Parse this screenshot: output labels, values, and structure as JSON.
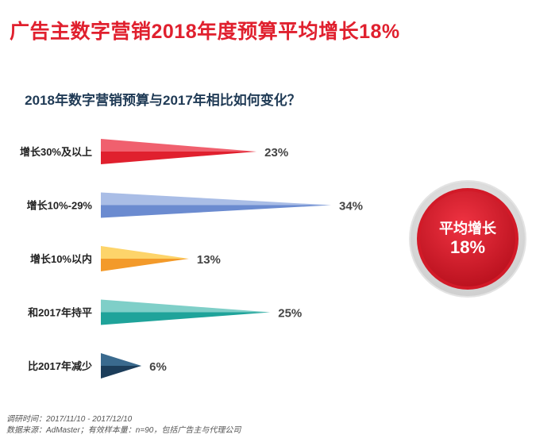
{
  "page_title": "广告主数字营销2018年度预算平均增长18%",
  "badge": {
    "label": "平均增长",
    "value": "18%"
  },
  "footer": {
    "line1": "调研时间：2017/11/10 - 2017/12/10",
    "line2": "数据来源：AdMaster；有效样本量：n=90，包括广告主与代理公司"
  },
  "chart_data": {
    "type": "bar",
    "orientation": "horizontal",
    "title": "2018年数字营销预算与2017年相比如何变化？",
    "categories": [
      "增长30%及以上",
      "增长10%-29%",
      "增长10%以内",
      "和2017年持平",
      "比2017年减少"
    ],
    "values": [
      23,
      34,
      13,
      25,
      6
    ],
    "value_labels": [
      "23%",
      "34%",
      "13%",
      "25%",
      "6%"
    ],
    "unit": "%",
    "xlim": [
      0,
      34
    ],
    "grid": false,
    "colors": [
      {
        "top": "#f0606e",
        "bottom": "#e0202e"
      },
      {
        "top": "#a9bde6",
        "bottom": "#6b8bd0"
      },
      {
        "top": "#fdd46a",
        "bottom": "#f39a2a"
      },
      {
        "top": "#7fcfc8",
        "bottom": "#1fa39a"
      },
      {
        "top": "#3a6a8e",
        "bottom": "#1c3d5a"
      }
    ]
  }
}
